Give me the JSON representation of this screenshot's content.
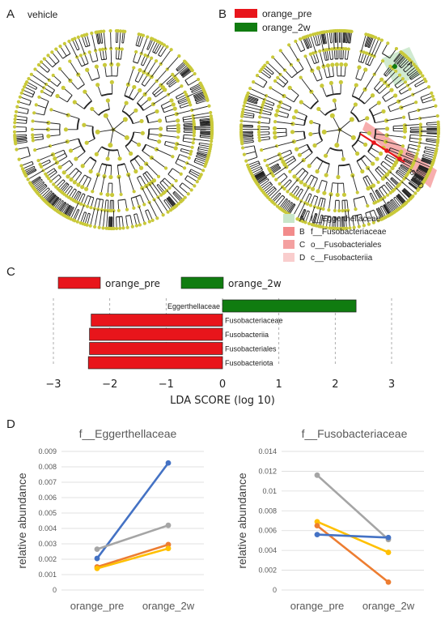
{
  "panels": {
    "a": {
      "label": "A",
      "title": "vehicle"
    },
    "b": {
      "label": "B",
      "legend": [
        {
          "name": "orange_pre",
          "color": "#e8151b"
        },
        {
          "name": "orange_2w",
          "color": "#107c10"
        }
      ],
      "clade_markers": [
        "A",
        "B",
        "C",
        "D"
      ],
      "clade_key": [
        {
          "letter": "A",
          "name": "f__Eggerthellaceae",
          "color": "#c8e6c9"
        },
        {
          "letter": "B",
          "name": "f__Fusobacteriaceae",
          "color": "#f28b8b"
        },
        {
          "letter": "C",
          "name": "o__Fusobacteriales",
          "color": "#f4a0a0"
        },
        {
          "letter": "D",
          "name": "c__Fusobacteriia",
          "color": "#f9cdcd"
        }
      ]
    },
    "c": {
      "label": "C"
    },
    "d": {
      "label": "D"
    }
  },
  "colors": {
    "pre": "#e8151b",
    "post": "#107c10",
    "node": "#c9c93a",
    "branch": "#222222"
  },
  "chart_data": [
    {
      "type": "bar",
      "orientation": "horizontal",
      "legend": [
        {
          "name": "orange_pre",
          "color": "#e8151b"
        },
        {
          "name": "orange_2w",
          "color": "#107c10"
        }
      ],
      "categories": [
        "Eggerthellaceae",
        "Fusobacteriaceae",
        "Fusobacteriia",
        "Fusobacteriales",
        "Fusobacteriota"
      ],
      "values": [
        2.37,
        -2.33,
        -2.36,
        -2.36,
        -2.38
      ],
      "groups": [
        "orange_2w",
        "orange_pre",
        "orange_pre",
        "orange_pre",
        "orange_pre"
      ],
      "xlabel": "LDA SCORE (log 10)",
      "xlim": [
        -3,
        3
      ],
      "xticks": [
        "−3",
        "−2",
        "−1",
        "0",
        "1",
        "2",
        "3"
      ],
      "grid": "vertical dashed"
    },
    {
      "type": "line",
      "title": "f__Eggerthellaceae",
      "ylabel": "relative abundance",
      "categories": [
        "orange_pre",
        "orange_2w"
      ],
      "ylim": [
        0,
        0.009
      ],
      "yticks": [
        "0",
        "0.001",
        "0.002",
        "0.003",
        "0.004",
        "0.005",
        "0.006",
        "0.007",
        "0.008",
        "0.009"
      ],
      "series": [
        {
          "color": "#4472c4",
          "values": [
            0.00205,
            0.00825
          ]
        },
        {
          "color": "#a5a5a5",
          "values": [
            0.00265,
            0.0042
          ]
        },
        {
          "color": "#ed7d31",
          "values": [
            0.0015,
            0.00295
          ]
        },
        {
          "color": "#ffc000",
          "values": [
            0.0014,
            0.0027
          ]
        }
      ]
    },
    {
      "type": "line",
      "title": "f__Fusobacteriaceae",
      "ylabel": "relative abundance",
      "categories": [
        "orange_pre",
        "orange_2w"
      ],
      "ylim": [
        0,
        0.014
      ],
      "yticks": [
        "0",
        "0.002",
        "0.004",
        "0.006",
        "0.008",
        "0.01",
        "0.012",
        "0.014"
      ],
      "series": [
        {
          "color": "#a5a5a5",
          "values": [
            0.0116,
            0.0051
          ]
        },
        {
          "color": "#ffc000",
          "values": [
            0.0069,
            0.0038
          ]
        },
        {
          "color": "#ed7d31",
          "values": [
            0.0065,
            0.0008
          ]
        },
        {
          "color": "#4472c4",
          "values": [
            0.0056,
            0.0053
          ]
        }
      ]
    }
  ]
}
